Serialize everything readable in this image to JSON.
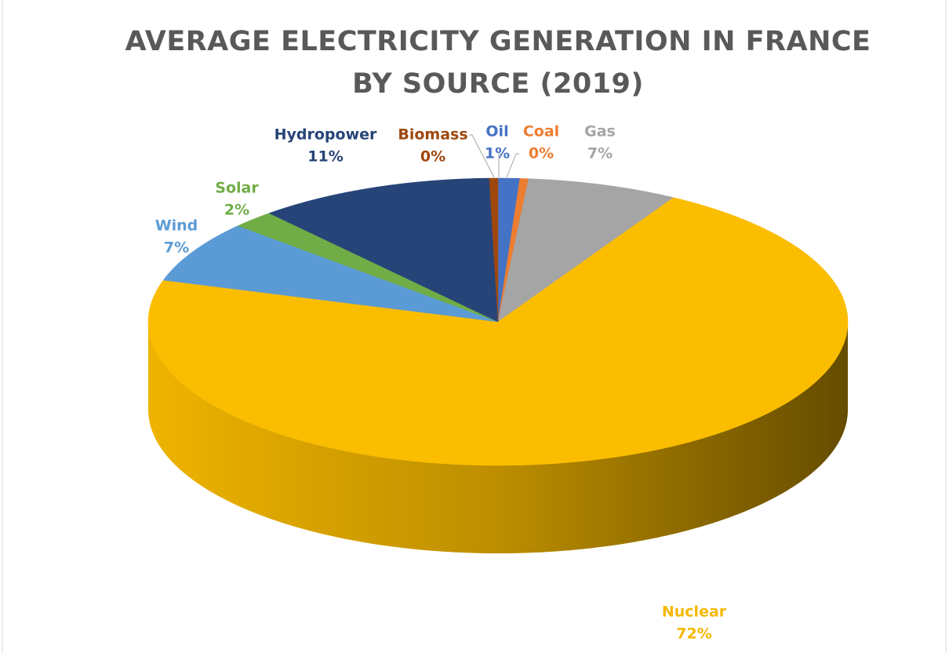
{
  "chart_data": {
    "type": "pie",
    "title": "AVERAGE ELECTRICITY GENERATION IN FRANCE BY SOURCE (2019)",
    "categories": [
      "Oil",
      "Coal",
      "Gas",
      "Nuclear",
      "Wind",
      "Solar",
      "Hydropower",
      "Biomass"
    ],
    "values": [
      1,
      0.4,
      7,
      71.6,
      7,
      2,
      11,
      0.4
    ],
    "value_labels": [
      "1%",
      "0%",
      "7%",
      "72%",
      "7%",
      "2%",
      "11%",
      "0%"
    ],
    "colors": [
      "#4472c4",
      "#ed7d31",
      "#a5a5a5",
      "#fbbd00",
      "#5b9bd5",
      "#70ad47",
      "#264478",
      "#9e480e"
    ]
  }
}
